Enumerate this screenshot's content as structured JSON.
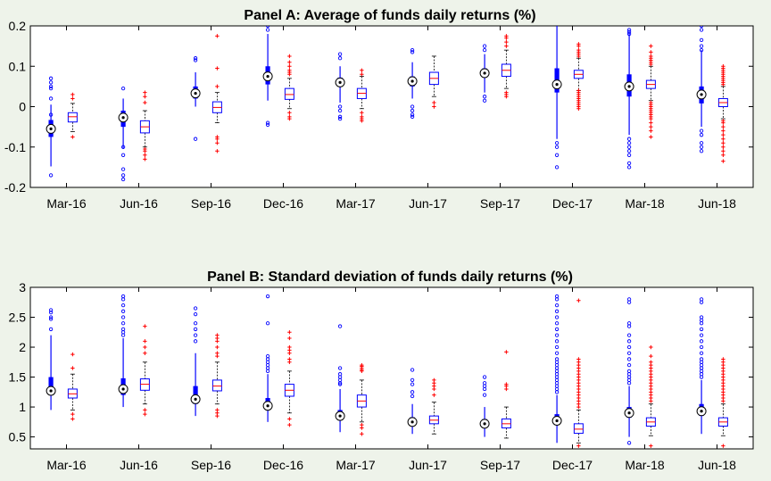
{
  "chart_data": [
    {
      "type": "boxplot",
      "title": "Panel A: Average of funds daily returns (%)",
      "categories": [
        "Mar-16",
        "Jun-16",
        "Sep-16",
        "Dec-16",
        "Mar-17",
        "Jun-17",
        "Sep-17",
        "Dec-17",
        "Mar-18",
        "Jun-18"
      ],
      "ylim": [
        -0.2,
        0.2
      ],
      "yticks": [
        "-0.2",
        "-0.1",
        "0",
        "0.1",
        "0.2"
      ],
      "ytick_values": [
        -0.2,
        -0.1,
        0,
        0.1,
        0.2
      ],
      "grid": false,
      "series": [
        {
          "style": "compact",
          "color": "#0000ff",
          "boxes": [
            {
              "median": -0.055,
              "q1": -0.075,
              "q3": -0.033,
              "lo": -0.148,
              "hi": 0.005,
              "out": [
                0.07,
                0.06,
                0.05,
                0.045,
                0.02,
                -0.02,
                -0.17
              ]
            },
            {
              "median": -0.027,
              "q1": -0.05,
              "q3": -0.01,
              "lo": -0.105,
              "hi": 0.02,
              "out": [
                0.045,
                -0.1,
                -0.12,
                -0.155,
                -0.17,
                -0.18
              ]
            },
            {
              "median": 0.033,
              "q1": 0.02,
              "q3": 0.05,
              "lo": 0.0,
              "hi": 0.085,
              "out": [
                0.12,
                0.115,
                -0.08
              ]
            },
            {
              "median": 0.075,
              "q1": 0.055,
              "q3": 0.1,
              "lo": 0.015,
              "hi": 0.18,
              "out": [
                0.2,
                0.19,
                -0.04,
                -0.045
              ]
            },
            {
              "median": 0.06,
              "q1": 0.05,
              "q3": 0.072,
              "lo": 0.01,
              "hi": 0.1,
              "out": [
                0.13,
                0.12,
                0.0,
                -0.01,
                -0.025,
                -0.03
              ]
            },
            {
              "median": 0.063,
              "q1": 0.05,
              "q3": 0.075,
              "lo": 0.02,
              "hi": 0.11,
              "out": [
                0.14,
                0.135,
                0.0,
                -0.01,
                -0.02,
                -0.025
              ]
            },
            {
              "median": 0.083,
              "q1": 0.072,
              "q3": 0.095,
              "lo": 0.035,
              "hi": 0.13,
              "out": [
                0.15,
                0.14,
                0.025,
                0.015
              ]
            },
            {
              "median": 0.055,
              "q1": 0.035,
              "q3": 0.095,
              "lo": -0.08,
              "hi": 0.2,
              "out": [
                -0.09,
                -0.1,
                -0.12,
                -0.15
              ]
            },
            {
              "median": 0.05,
              "q1": 0.025,
              "q3": 0.08,
              "lo": -0.07,
              "hi": 0.18,
              "out": [
                0.19,
                0.185,
                0.18,
                -0.08,
                -0.09,
                -0.1,
                -0.11,
                -0.12,
                -0.14,
                -0.15
              ]
            },
            {
              "median": 0.03,
              "q1": 0.008,
              "q3": 0.05,
              "lo": -0.05,
              "hi": 0.14,
              "out": [
                0.2,
                0.19,
                0.165,
                0.15,
                0.14,
                -0.06,
                -0.07,
                -0.09,
                -0.1,
                -0.11
              ]
            }
          ]
        },
        {
          "style": "traditional",
          "color": "#0000ff",
          "median_color": "#ff0000",
          "outlier_color": "#ff0000",
          "boxes": [
            {
              "median": -0.025,
              "q1": -0.038,
              "q3": -0.015,
              "lo": -0.062,
              "hi": 0.008,
              "out": [
                0.03,
                0.02,
                -0.075
              ]
            },
            {
              "median": -0.05,
              "q1": -0.065,
              "q3": -0.035,
              "lo": -0.1,
              "hi": -0.01,
              "out": [
                0.035,
                0.025,
                0.01,
                -0.105,
                -0.11,
                -0.12,
                -0.13
              ]
            },
            {
              "median": -0.002,
              "q1": -0.015,
              "q3": 0.012,
              "lo": -0.04,
              "hi": 0.035,
              "out": [
                0.175,
                0.095,
                0.05,
                -0.075,
                -0.08,
                -0.09,
                -0.11
              ]
            },
            {
              "median": 0.03,
              "q1": 0.018,
              "q3": 0.045,
              "lo": -0.005,
              "hi": 0.07,
              "out": [
                0.125,
                0.11,
                0.1,
                0.09,
                0.085,
                0.08,
                -0.015,
                -0.025,
                -0.03
              ]
            },
            {
              "median": 0.033,
              "q1": 0.02,
              "q3": 0.045,
              "lo": -0.005,
              "hi": 0.075,
              "out": [
                0.09,
                0.08,
                -0.015,
                -0.025,
                -0.03,
                -0.035
              ]
            },
            {
              "median": 0.07,
              "q1": 0.055,
              "q3": 0.085,
              "lo": 0.025,
              "hi": 0.125,
              "out": [
                0.01,
                0.0
              ]
            },
            {
              "median": 0.09,
              "q1": 0.075,
              "q3": 0.105,
              "lo": 0.045,
              "hi": 0.14,
              "out": [
                0.175,
                0.17,
                0.16,
                0.15,
                0.035,
                0.03,
                0.025
              ]
            },
            {
              "median": 0.08,
              "q1": 0.07,
              "q3": 0.09,
              "lo": 0.04,
              "hi": 0.12,
              "out": [
                0.155,
                0.15,
                0.14,
                0.135,
                0.13,
                0.125,
                0.04,
                0.035,
                0.03,
                0.025,
                0.02,
                0.015,
                0.01,
                0.005,
                0.0,
                -0.005
              ]
            },
            {
              "median": 0.055,
              "q1": 0.045,
              "q3": 0.065,
              "lo": 0.015,
              "hi": 0.1,
              "out": [
                0.15,
                0.135,
                0.125,
                0.12,
                0.115,
                0.11,
                0.105,
                0.01,
                0.005,
                0.0,
                -0.005,
                -0.01,
                -0.015,
                -0.02,
                -0.025,
                -0.03,
                -0.04,
                -0.05,
                -0.06,
                -0.075
              ]
            },
            {
              "median": 0.01,
              "q1": 0.0,
              "q3": 0.02,
              "lo": -0.03,
              "hi": 0.05,
              "out": [
                0.1,
                0.095,
                0.09,
                0.085,
                0.08,
                0.075,
                0.07,
                0.065,
                0.06,
                0.055,
                -0.035,
                -0.04,
                -0.05,
                -0.06,
                -0.07,
                -0.08,
                -0.09,
                -0.1,
                -0.11,
                -0.12,
                -0.135
              ]
            }
          ]
        }
      ]
    },
    {
      "type": "boxplot",
      "title": "Panel B: Standard deviation of funds daily returns (%)",
      "categories": [
        "Mar-16",
        "Jun-16",
        "Sep-16",
        "Dec-16",
        "Mar-17",
        "Jun-17",
        "Sep-17",
        "Dec-17",
        "Mar-18",
        "Jun-18"
      ],
      "ylim": [
        0.3,
        3.0
      ],
      "yticks": [
        "0.5",
        "1",
        "1.5",
        "2",
        "2.5",
        "3"
      ],
      "ytick_values": [
        0.5,
        1,
        1.5,
        2,
        2.5,
        3
      ],
      "grid": false,
      "series": [
        {
          "style": "compact",
          "color": "#0000ff",
          "boxes": [
            {
              "median": 1.27,
              "q1": 1.2,
              "q3": 1.5,
              "lo": 0.95,
              "hi": 2.2,
              "out": [
                2.62,
                2.58,
                2.5,
                2.47,
                2.3
              ]
            },
            {
              "median": 1.3,
              "q1": 1.2,
              "q3": 1.48,
              "lo": 1.0,
              "hi": 2.15,
              "out": [
                2.85,
                2.8,
                2.7,
                2.6,
                2.5,
                2.4,
                2.3,
                2.25,
                2.2
              ]
            },
            {
              "median": 1.13,
              "q1": 1.05,
              "q3": 1.35,
              "lo": 0.85,
              "hi": 1.9,
              "out": [
                2.65,
                2.55,
                2.4,
                2.3,
                2.2,
                2.1
              ]
            },
            {
              "median": 1.02,
              "q1": 0.95,
              "q3": 1.15,
              "lo": 0.75,
              "hi": 1.55,
              "out": [
                2.85,
                2.4,
                1.85,
                1.8,
                1.75,
                1.7,
                1.65,
                1.6
              ]
            },
            {
              "median": 0.85,
              "q1": 0.78,
              "q3": 0.95,
              "lo": 0.58,
              "hi": 1.3,
              "out": [
                2.35,
                1.65,
                1.55,
                1.5,
                1.45,
                1.4,
                1.38
              ]
            },
            {
              "median": 0.75,
              "q1": 0.7,
              "q3": 0.83,
              "lo": 0.55,
              "hi": 1.05,
              "out": [
                1.62,
                1.45,
                1.38,
                1.25,
                1.18
              ]
            },
            {
              "median": 0.72,
              "q1": 0.67,
              "q3": 0.8,
              "lo": 0.5,
              "hi": 1.0,
              "out": [
                1.5,
                1.4,
                1.35,
                1.3,
                1.2
              ]
            },
            {
              "median": 0.77,
              "q1": 0.7,
              "q3": 0.88,
              "lo": 0.4,
              "hi": 1.2,
              "out": [
                2.85,
                2.8,
                2.7,
                2.6,
                2.5,
                2.4,
                2.3,
                2.2,
                2.1,
                2.0,
                1.9,
                1.8,
                1.75,
                1.7,
                1.65,
                1.6,
                1.55,
                1.5,
                1.45,
                1.4,
                1.35,
                1.3,
                1.25
              ]
            },
            {
              "median": 0.9,
              "q1": 0.82,
              "q3": 1.0,
              "lo": 0.5,
              "hi": 1.35,
              "out": [
                2.8,
                2.75,
                2.4,
                2.35,
                2.2,
                2.1,
                2.0,
                1.9,
                1.8,
                1.7,
                1.6,
                1.55,
                1.5,
                1.45,
                1.4,
                0.4
              ]
            },
            {
              "median": 0.93,
              "q1": 0.85,
              "q3": 1.05,
              "lo": 0.55,
              "hi": 1.45,
              "out": [
                2.8,
                2.75,
                2.5,
                2.45,
                2.4,
                2.3,
                2.2,
                2.1,
                2.0,
                1.9,
                1.8,
                1.75,
                1.7,
                1.65,
                1.6,
                1.55,
                1.5
              ]
            }
          ]
        },
        {
          "style": "traditional",
          "color": "#0000ff",
          "median_color": "#ff0000",
          "outlier_color": "#ff0000",
          "boxes": [
            {
              "median": 1.22,
              "q1": 1.15,
              "q3": 1.3,
              "lo": 0.95,
              "hi": 1.55,
              "out": [
                1.88,
                1.65,
                0.88,
                0.8
              ]
            },
            {
              "median": 1.38,
              "q1": 1.28,
              "q3": 1.47,
              "lo": 1.05,
              "hi": 1.75,
              "out": [
                2.35,
                2.1,
                2.0,
                1.9,
                0.95,
                0.88
              ]
            },
            {
              "median": 1.35,
              "q1": 1.27,
              "q3": 1.45,
              "lo": 1.05,
              "hi": 1.75,
              "out": [
                2.2,
                2.15,
                2.1,
                2.0,
                1.9,
                1.85,
                0.95,
                0.9,
                0.85
              ]
            },
            {
              "median": 1.28,
              "q1": 1.18,
              "q3": 1.38,
              "lo": 0.9,
              "hi": 1.6,
              "out": [
                2.25,
                2.15,
                2.0,
                1.95,
                1.9,
                1.8,
                1.75,
                0.8,
                0.7
              ]
            },
            {
              "median": 1.1,
              "q1": 1.0,
              "q3": 1.2,
              "lo": 0.75,
              "hi": 1.45,
              "out": [
                1.7,
                1.68,
                1.65,
                1.62,
                1.6,
                0.7,
                0.65,
                0.55
              ]
            },
            {
              "median": 0.78,
              "q1": 0.72,
              "q3": 0.85,
              "lo": 0.55,
              "hi": 1.08,
              "out": [
                1.45,
                1.4,
                1.35,
                1.3,
                1.2
              ]
            },
            {
              "median": 0.72,
              "q1": 0.65,
              "q3": 0.8,
              "lo": 0.48,
              "hi": 1.0,
              "out": [
                1.92,
                1.38,
                1.35,
                1.3
              ]
            },
            {
              "median": 0.63,
              "q1": 0.56,
              "q3": 0.72,
              "lo": 0.4,
              "hi": 0.95,
              "out": [
                2.78,
                1.8,
                1.75,
                1.7,
                1.65,
                1.6,
                1.55,
                1.5,
                1.45,
                1.4,
                1.35,
                1.3,
                1.25,
                1.2,
                1.15,
                1.1,
                1.05,
                1.0,
                0.35
              ]
            },
            {
              "median": 0.75,
              "q1": 0.68,
              "q3": 0.82,
              "lo": 0.52,
              "hi": 1.05,
              "out": [
                2.0,
                1.85,
                1.75,
                1.7,
                1.65,
                1.6,
                1.55,
                1.5,
                1.45,
                1.4,
                1.35,
                1.3,
                1.25,
                1.2,
                1.15,
                1.1,
                0.35
              ]
            },
            {
              "median": 0.75,
              "q1": 0.68,
              "q3": 0.82,
              "lo": 0.52,
              "hi": 1.05,
              "out": [
                1.8,
                1.75,
                1.7,
                1.65,
                1.6,
                1.55,
                1.5,
                1.45,
                1.4,
                1.35,
                1.3,
                1.25,
                1.2,
                1.15,
                1.1,
                0.35
              ]
            }
          ]
        }
      ]
    }
  ]
}
